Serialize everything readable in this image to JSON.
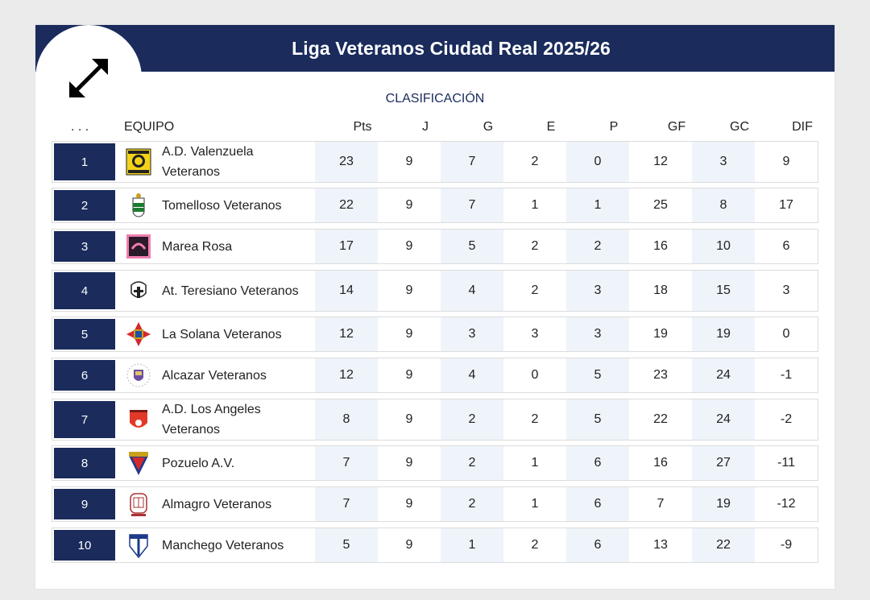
{
  "title": "Liga Veteranos Ciudad Real 2025/26",
  "subtitle": "CLASIFICACIÓN",
  "colors": {
    "navy": "#1a2b5c",
    "shade": "#eef4fa"
  },
  "expand_icon": "expand-arrows-icon",
  "columns": {
    "rank": ". . .",
    "team": "EQUIPO",
    "pts": "Pts",
    "j": "J",
    "g": "G",
    "e": "E",
    "p": "P",
    "gf": "GF",
    "gc": "GC",
    "dif": "DIF"
  },
  "rows": [
    {
      "rank": "1",
      "team": "A.D. Valenzuela Veteranos",
      "crest": "valenzuela-crest-icon",
      "pts": "23",
      "j": "9",
      "g": "7",
      "e": "2",
      "p": "0",
      "gf": "12",
      "gc": "3",
      "dif": "9"
    },
    {
      "rank": "2",
      "team": "Tomelloso Veteranos",
      "crest": "tomelloso-crest-icon",
      "pts": "22",
      "j": "9",
      "g": "7",
      "e": "1",
      "p": "1",
      "gf": "25",
      "gc": "8",
      "dif": "17"
    },
    {
      "rank": "3",
      "team": "Marea Rosa",
      "crest": "marea-rosa-crest-icon",
      "pts": "17",
      "j": "9",
      "g": "5",
      "e": "2",
      "p": "2",
      "gf": "16",
      "gc": "10",
      "dif": "6"
    },
    {
      "rank": "4",
      "team": "At. Teresiano Veteranos",
      "crest": "teresiano-crest-icon",
      "pts": "14",
      "j": "9",
      "g": "4",
      "e": "2",
      "p": "3",
      "gf": "18",
      "gc": "15",
      "dif": "3"
    },
    {
      "rank": "5",
      "team": "La Solana Veteranos",
      "crest": "la-solana-crest-icon",
      "pts": "12",
      "j": "9",
      "g": "3",
      "e": "3",
      "p": "3",
      "gf": "19",
      "gc": "19",
      "dif": "0"
    },
    {
      "rank": "6",
      "team": "Alcazar Veteranos",
      "crest": "alcazar-crest-icon",
      "pts": "12",
      "j": "9",
      "g": "4",
      "e": "0",
      "p": "5",
      "gf": "23",
      "gc": "24",
      "dif": "-1"
    },
    {
      "rank": "7",
      "team": "A.D. Los Angeles Veteranos",
      "crest": "los-angeles-crest-icon",
      "pts": "8",
      "j": "9",
      "g": "2",
      "e": "2",
      "p": "5",
      "gf": "22",
      "gc": "24",
      "dif": "-2"
    },
    {
      "rank": "8",
      "team": "Pozuelo A.V.",
      "crest": "pozuelo-crest-icon",
      "pts": "7",
      "j": "9",
      "g": "2",
      "e": "1",
      "p": "6",
      "gf": "16",
      "gc": "27",
      "dif": "-11"
    },
    {
      "rank": "9",
      "team": "Almagro Veteranos",
      "crest": "almagro-crest-icon",
      "pts": "7",
      "j": "9",
      "g": "2",
      "e": "1",
      "p": "6",
      "gf": "7",
      "gc": "19",
      "dif": "-12"
    },
    {
      "rank": "10",
      "team": "Manchego Veteranos",
      "crest": "manchego-crest-icon",
      "pts": "5",
      "j": "9",
      "g": "1",
      "e": "2",
      "p": "6",
      "gf": "13",
      "gc": "22",
      "dif": "-9"
    }
  ]
}
